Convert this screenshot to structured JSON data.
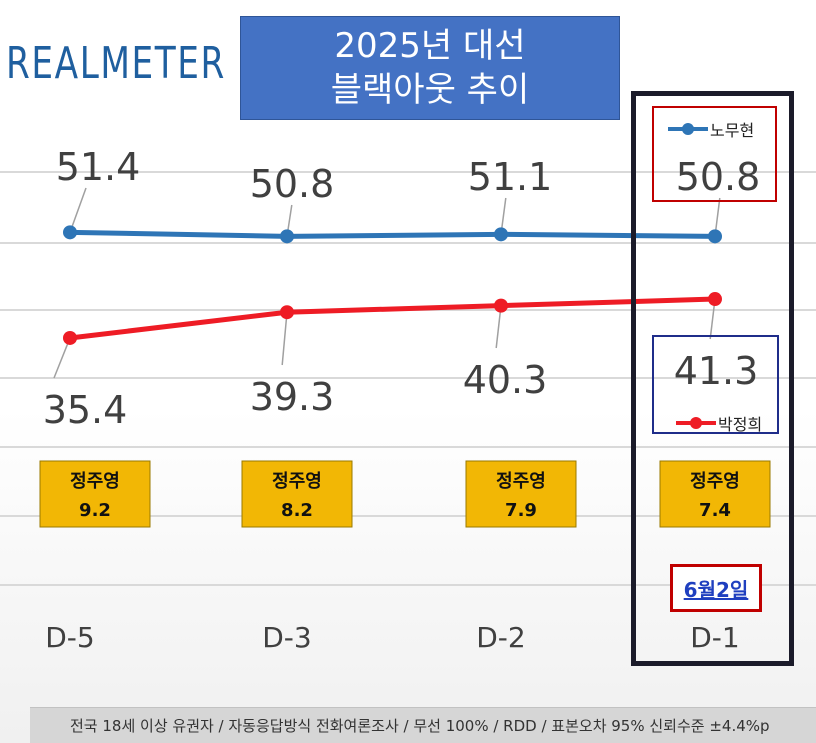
{
  "logo": "REALMETER",
  "title": {
    "line1": "2025년 대선",
    "line2": "블랙아웃 추이"
  },
  "chart_data": {
    "type": "line",
    "categories": [
      "D-5",
      "D-3",
      "D-2",
      "D-1"
    ],
    "series": [
      {
        "name": "노무현",
        "color": "#2e75b6",
        "values": [
          51.4,
          50.8,
          51.1,
          50.8
        ]
      },
      {
        "name": "박정희",
        "color": "#ee1c25",
        "values": [
          35.4,
          39.3,
          40.3,
          41.3
        ]
      }
    ],
    "third_candidate": {
      "name": "정주영",
      "values": [
        "9.2",
        "8.2",
        "7.9",
        "7.4"
      ],
      "color": "#f2b705"
    },
    "grid": true,
    "legend_position": "right"
  },
  "highlight_date": "6월2일",
  "footer": "전국 18세 이상 유권자 / 자동응답방식 전화여론조사 / 무선 100% / RDD / 표본오차 95% 신뢰수준 ±4.4%p"
}
